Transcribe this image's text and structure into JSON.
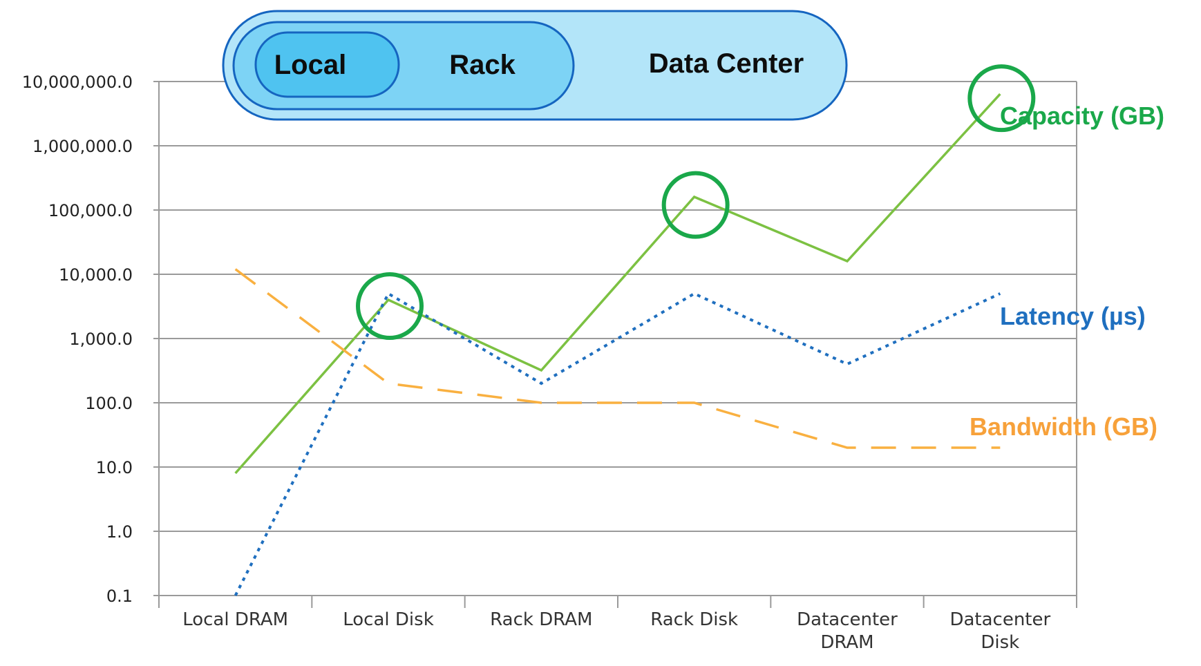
{
  "hierarchy": {
    "labels": [
      "Local",
      "Rack",
      "Data Center"
    ],
    "colors": [
      "#4fc3f0",
      "#7dd3f5",
      "#b3e5f9"
    ],
    "border_color": "#1565c0"
  },
  "chart_data": {
    "type": "line",
    "scale": "log",
    "ylim": [
      0.1,
      10000000
    ],
    "y_ticks": [
      0.1,
      1,
      10,
      100,
      1000,
      10000,
      100000,
      1000000,
      10000000
    ],
    "y_tick_labels": [
      "0.1",
      "1.0",
      "10.0",
      "100.0",
      "1,000.0",
      "10,000.0",
      "100,000.0",
      "1,000,000.0",
      "10,000,000.0"
    ],
    "categories": [
      {
        "lines": [
          "Local DRAM"
        ]
      },
      {
        "lines": [
          "Local Disk"
        ]
      },
      {
        "lines": [
          "Rack DRAM"
        ]
      },
      {
        "lines": [
          "Rack Disk"
        ]
      },
      {
        "lines": [
          "Datacenter",
          "DRAM"
        ]
      },
      {
        "lines": [
          "Datacenter",
          "Disk"
        ]
      }
    ],
    "grid": true,
    "series": [
      {
        "name": "Capacity (GB)",
        "color": "#7cc142",
        "label_color": "#1aa84a",
        "dash": "none",
        "values": [
          8,
          4000,
          320,
          160000,
          16000,
          6400000
        ]
      },
      {
        "name": "Latency (µs)",
        "color": "#1f6fbf",
        "label_color": "#1f6fbf",
        "dash": "dotted",
        "values": [
          0.1,
          5000,
          200,
          5000,
          400,
          5000
        ]
      },
      {
        "name": "Bandwidth (GB)",
        "color": "#f9b040",
        "label_color": "#f7a13a",
        "dash": "dashed",
        "values": [
          12000,
          200,
          100,
          100,
          20,
          20
        ]
      }
    ],
    "highlights": [
      {
        "category": 1,
        "value": 3200
      },
      {
        "category": 3,
        "value": 120000
      },
      {
        "category": 5,
        "value": 5500000
      }
    ],
    "highlight_color": "#1aa84a"
  }
}
